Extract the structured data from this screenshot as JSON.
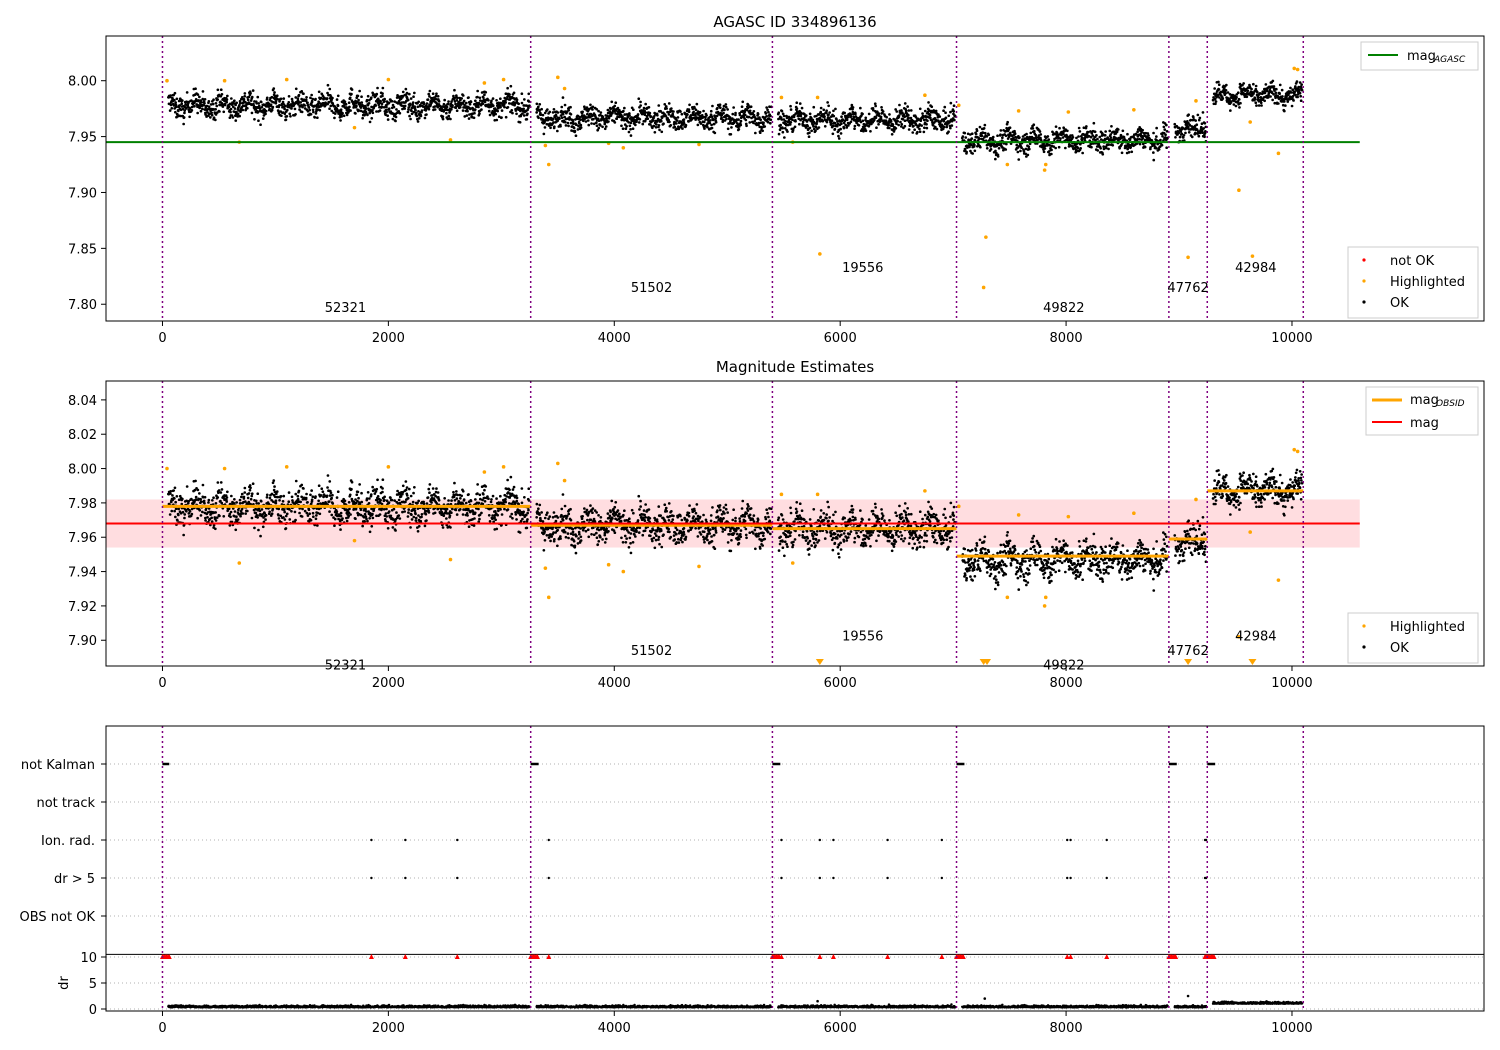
{
  "figure": {
    "title": "AGASC ID 334896136"
  },
  "obsid_boundaries": [
    0,
    3260,
    5400,
    7030,
    8910,
    9250,
    10100
  ],
  "obsid_labels": [
    {
      "text": "52321",
      "x": 1620,
      "level": 0
    },
    {
      "text": "51502",
      "x": 4330,
      "level": 1
    },
    {
      "text": "19556",
      "x": 6200,
      "level": 2
    },
    {
      "text": "49822",
      "x": 7980,
      "level": 0
    },
    {
      "text": "47762",
      "x": 9080,
      "level": 1
    },
    {
      "text": "42984",
      "x": 9680,
      "level": 2
    }
  ],
  "colors": {
    "ok": "#000000",
    "highlighted": "#ffa500",
    "not_ok": "#ff0000",
    "agasc_line": "#008000",
    "mag_line": "#ff0000",
    "mag_band": "#ffdde0",
    "obsid_line": "#800080",
    "grid": "#b0b0b0"
  },
  "chart_data": [
    {
      "type": "scatter",
      "title": "",
      "xlim": [
        -500,
        11700
      ],
      "ylim": [
        7.785,
        8.04
      ],
      "x_ticks": [
        0,
        2000,
        4000,
        6000,
        8000,
        10000
      ],
      "y_ticks": [
        7.8,
        7.85,
        7.9,
        7.95,
        8.0
      ],
      "y_tick_labels": [
        "7.80",
        "7.85",
        "7.90",
        "7.95",
        "8.00"
      ],
      "lines": [
        {
          "name": "mag_AGASC",
          "legend_main": "mag",
          "legend_sub": "AGASC",
          "y": 7.945,
          "x_range": [
            -500,
            10600
          ],
          "color": "#008000"
        }
      ],
      "segment_means": [
        7.978,
        7.967,
        7.965,
        7.947,
        7.958,
        7.987
      ],
      "segment_spread": [
        0.007,
        0.007,
        0.007,
        0.007,
        0.007,
        0.006
      ],
      "legend_points": [
        {
          "label": "not OK",
          "color": "#ff0000"
        },
        {
          "label": "Highlighted",
          "color": "#ffa500"
        },
        {
          "label": "OK",
          "color": "#000000"
        }
      ],
      "highlighted": [
        [
          40,
          8.0
        ],
        [
          550,
          8.0
        ],
        [
          680,
          7.945
        ],
        [
          1100,
          8.001
        ],
        [
          1700,
          7.958
        ],
        [
          2000,
          8.001
        ],
        [
          2550,
          7.947
        ],
        [
          2850,
          7.998
        ],
        [
          3020,
          8.001
        ],
        [
          3390,
          7.942
        ],
        [
          3420,
          7.925
        ],
        [
          3500,
          8.003
        ],
        [
          3560,
          7.993
        ],
        [
          3950,
          7.944
        ],
        [
          4080,
          7.94
        ],
        [
          4750,
          7.943
        ],
        [
          5480,
          7.985
        ],
        [
          5580,
          7.945
        ],
        [
          5820,
          7.845
        ],
        [
          5800,
          7.985
        ],
        [
          6750,
          7.987
        ],
        [
          7050,
          7.978
        ],
        [
          7270,
          7.815
        ],
        [
          7290,
          7.86
        ],
        [
          7480,
          7.925
        ],
        [
          7580,
          7.973
        ],
        [
          7820,
          7.925
        ],
        [
          7810,
          7.92
        ],
        [
          8020,
          7.972
        ],
        [
          8600,
          7.974
        ],
        [
          9080,
          7.842
        ],
        [
          9150,
          7.982
        ],
        [
          9530,
          7.902
        ],
        [
          9650,
          7.843
        ],
        [
          9630,
          7.963
        ],
        [
          9880,
          7.935
        ],
        [
          10020,
          8.011
        ],
        [
          10050,
          8.01
        ]
      ]
    },
    {
      "type": "scatter",
      "title": "Magnitude Estimates",
      "xlim": [
        -500,
        11700
      ],
      "ylim": [
        7.885,
        8.051
      ],
      "x_ticks": [
        0,
        2000,
        4000,
        6000,
        8000,
        10000
      ],
      "y_ticks": [
        7.9,
        7.92,
        7.94,
        7.96,
        7.98,
        8.0,
        8.02,
        8.04
      ],
      "y_tick_labels": [
        "7.90",
        "7.92",
        "7.94",
        "7.96",
        "7.98",
        "8.00",
        "8.02",
        "8.04"
      ],
      "mag": {
        "y": 7.968,
        "band": [
          7.954,
          7.982
        ],
        "x_range": [
          -500,
          10600
        ]
      },
      "mag_obsid": [
        7.978,
        7.967,
        7.965,
        7.949,
        7.959,
        7.987
      ],
      "legend_lines": [
        {
          "main": "mag",
          "sub": "OBSID",
          "color": "#ffa500"
        },
        {
          "main": "mag",
          "sub": "",
          "color": "#ff0000"
        }
      ],
      "legend_points": [
        {
          "label": "Highlighted",
          "color": "#ffa500"
        },
        {
          "label": "OK",
          "color": "#000000"
        }
      ],
      "below_range_markers": [
        5820,
        7270,
        7300,
        9080,
        9650
      ]
    },
    {
      "type": "scatter",
      "title": "",
      "xlim": [
        -500,
        11700
      ],
      "flag_rows": [
        "not Kalman",
        "not track",
        "Ion. rad.",
        "dr > 5",
        "OBS not OK"
      ],
      "kalman_runs": [
        [
          0,
          60
        ],
        [
          3260,
          3330
        ],
        [
          5400,
          5470
        ],
        [
          7030,
          7100
        ],
        [
          8910,
          8980
        ],
        [
          9250,
          9320
        ]
      ],
      "flag_events": [
        1850,
        2150,
        2610,
        3420,
        5480,
        5820,
        5940,
        6420,
        6900,
        8010,
        8040,
        8360,
        9230,
        9240
      ],
      "dr": {
        "ylim": [
          -0.5,
          11
        ],
        "y_ticks": [
          0,
          5,
          10
        ],
        "ylabel": "dr",
        "clip_line": 10.5,
        "high_value": 10,
        "low_level": 0.3,
        "outliers": [
          [
            5800,
            1.5
          ],
          [
            7280,
            2.0
          ],
          [
            9080,
            2.5
          ]
        ]
      }
    }
  ]
}
